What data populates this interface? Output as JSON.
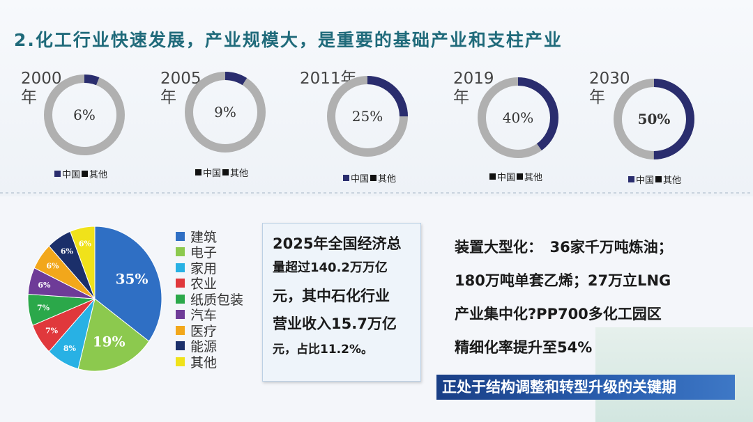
{
  "title": "2.化工行业快速发展，产业规模大，是重要的基础产业和支柱产业",
  "colors": {
    "china": "#2a2d6e",
    "other": "#b0b0b0",
    "highlight": "#c0141e"
  },
  "rings": [
    {
      "year": "2000",
      "unit": "年",
      "value": 6,
      "label": "6%",
      "legend_china": "中国",
      "legend_other": "其他"
    },
    {
      "year": "2005",
      "unit": "年",
      "value": 9,
      "label": "9%",
      "legend_china": "中国",
      "legend_other": "其他"
    },
    {
      "year": "2011年",
      "unit": "",
      "value": 25,
      "label": "25%",
      "legend_china": "中国",
      "legend_other": "其他"
    },
    {
      "year": "2019",
      "unit": "年",
      "value": 40,
      "label": "40%",
      "legend_china": "中国",
      "legend_other": "其他"
    },
    {
      "year": "2030",
      "unit": "年",
      "value": 50,
      "label": "50%",
      "legend_china": "中国",
      "legend_other": "其他"
    }
  ],
  "pie": {
    "slices": [
      {
        "name": "建筑",
        "value": 35,
        "label": "35%",
        "color": "#2f6fc4"
      },
      {
        "name": "电子",
        "value": 19,
        "label": "19%",
        "color": "#8cc94e"
      },
      {
        "name": "家用",
        "value": 8,
        "label": "8%",
        "color": "#28b1e4"
      },
      {
        "name": "农业",
        "value": 7,
        "label": "7%",
        "color": "#e0383c"
      },
      {
        "name": "纸质包装",
        "value": 7,
        "label": "7%",
        "color": "#2ba84a"
      },
      {
        "name": "汽车",
        "value": 6,
        "label": "6%",
        "color": "#6e3b98"
      },
      {
        "name": "医疗",
        "value": 6,
        "label": "6%",
        "color": "#f2a71b"
      },
      {
        "name": "能源",
        "value": 6,
        "label": "6%",
        "color": "#1b2f6a"
      },
      {
        "name": "其他",
        "value": 6,
        "label": "6%",
        "color": "#f0e21a"
      }
    ]
  },
  "info_box": {
    "line1": "2025年全国经济总",
    "line2": "量超过140.2万万亿",
    "line3": "元，其中石化行业",
    "line4": "营业收入15.7万亿",
    "line5": "元，占比11.2%。"
  },
  "right_text": {
    "line1": "装置大型化：　36家千万吨炼油；",
    "line2": "180万吨单套乙烯；27万立LNG",
    "line3": "产业集中化?PP700多化工园区",
    "line4": "精细化率提升至54%"
  },
  "banner": "正处于结构调整和转型升级的关键期"
}
